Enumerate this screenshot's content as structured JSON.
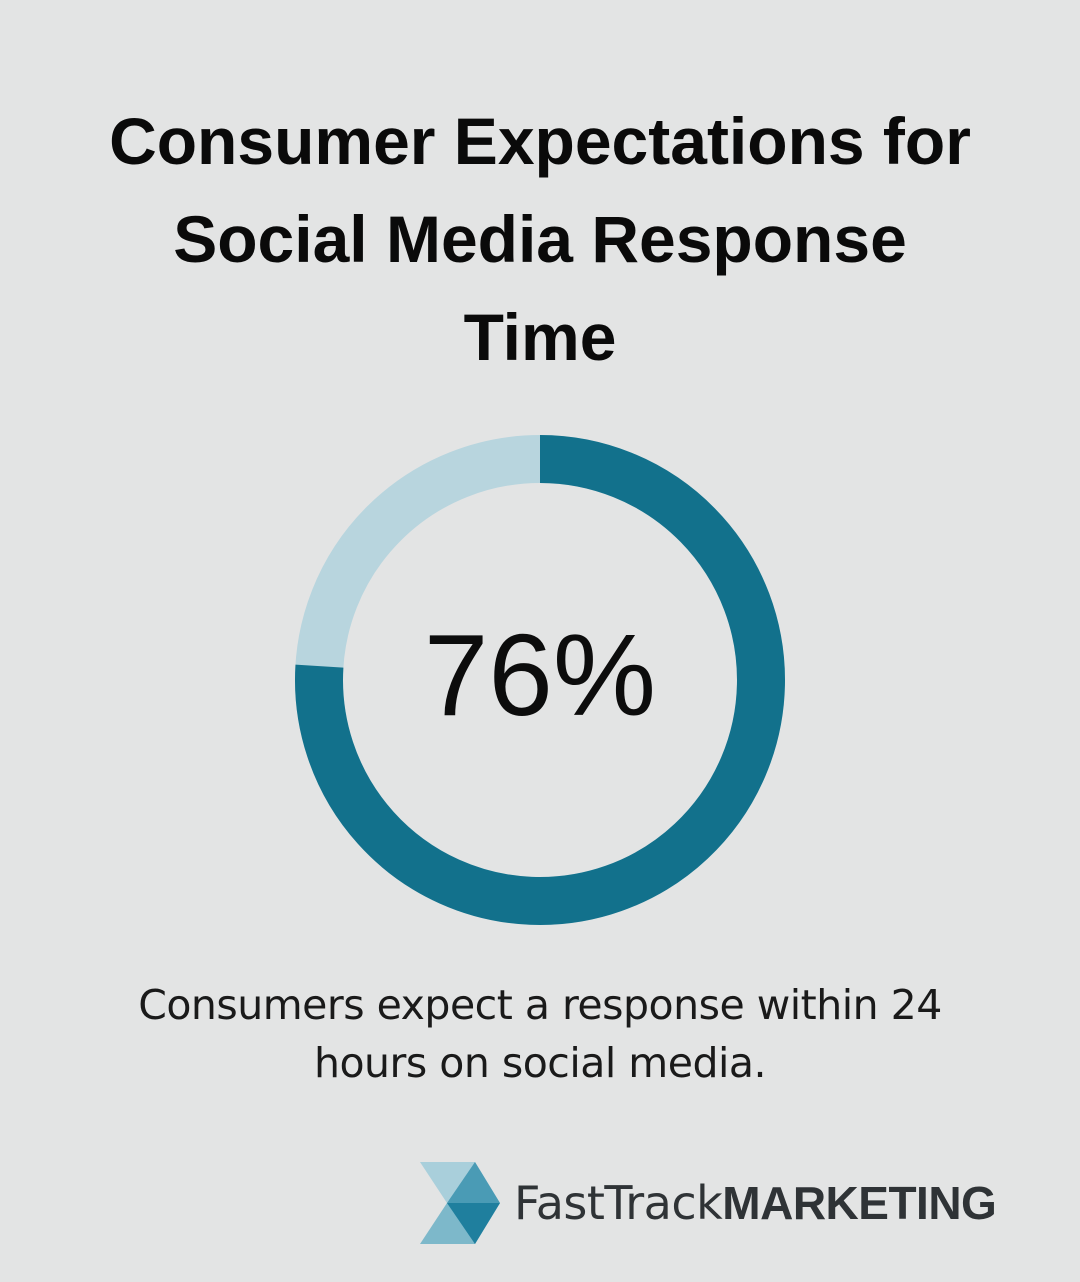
{
  "header": {
    "title_line1": "Consumer Expectations for",
    "title_line2": "Social Media Response",
    "title_line3": "Time"
  },
  "chart_data": {
    "type": "pie",
    "variant": "donut",
    "values": [
      76,
      24
    ],
    "center_label": "76%",
    "colors": [
      "#12718c",
      "#b8d5de"
    ]
  },
  "caption": {
    "line1": "Consumers expect a response within 24",
    "line2": "hours on social media."
  },
  "logo": {
    "part1": "FastTrack",
    "part2": "MARKETING",
    "colors": [
      "#a9cfdb",
      "#7db8ca",
      "#4a9bb5",
      "#1f7f9e"
    ]
  }
}
